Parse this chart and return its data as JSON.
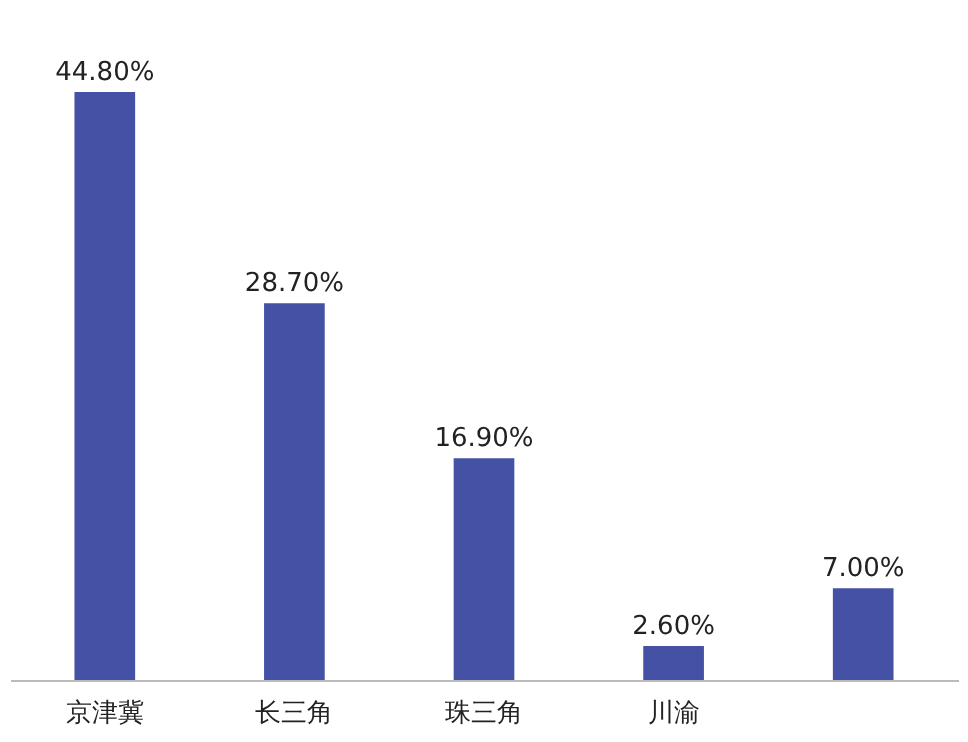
{
  "chart_data": {
    "type": "bar",
    "categories": [
      "京津冀",
      "长三角",
      "珠三角",
      "川渝",
      null
    ],
    "values": [
      44.8,
      28.7,
      16.9,
      2.6,
      7.0
    ],
    "value_labels": [
      "44.80%",
      "28.70%",
      "16.90%",
      "2.60%",
      "7.00%"
    ],
    "color": "#4551a5"
  }
}
